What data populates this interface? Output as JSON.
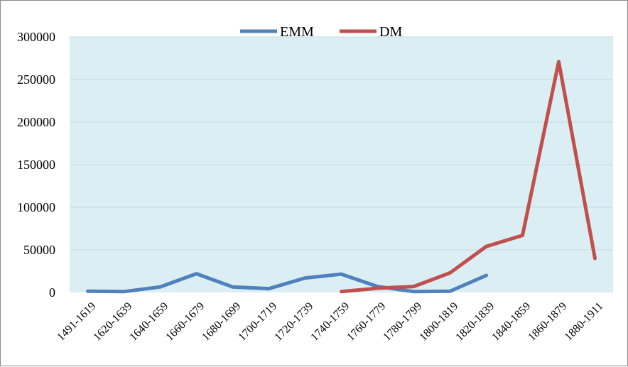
{
  "chart_data": {
    "type": "line",
    "categories": [
      "1491-1619",
      "1620-1639",
      "1640-1659",
      "1660-1679",
      "1680-1699",
      "1700-1719",
      "1720-1739",
      "1740-1759",
      "1760-1779",
      "1780-1799",
      "1800-1819",
      "1820-1839",
      "1840-1859",
      "1860-1879",
      "1880-1911"
    ],
    "series": [
      {
        "name": "EMM",
        "color": "#4f81bd",
        "values": [
          1500,
          1000,
          6500,
          22000,
          6500,
          4500,
          17000,
          21500,
          7000,
          1000,
          1500,
          20000,
          null,
          null,
          null
        ]
      },
      {
        "name": "DM",
        "color": "#c0504d",
        "values": [
          null,
          null,
          null,
          null,
          null,
          null,
          null,
          1000,
          5000,
          7000,
          23000,
          54000,
          67000,
          271000,
          40000
        ]
      }
    ],
    "ylim": [
      0,
      300000
    ],
    "yticks": [
      0,
      50000,
      100000,
      150000,
      200000,
      250000,
      300000
    ],
    "ytick_labels": [
      "0",
      "50000",
      "100000",
      "150000",
      "200000",
      "250000",
      "300000"
    ],
    "grid": true,
    "legend": "top-center",
    "plot_background": "#dbeef4"
  }
}
